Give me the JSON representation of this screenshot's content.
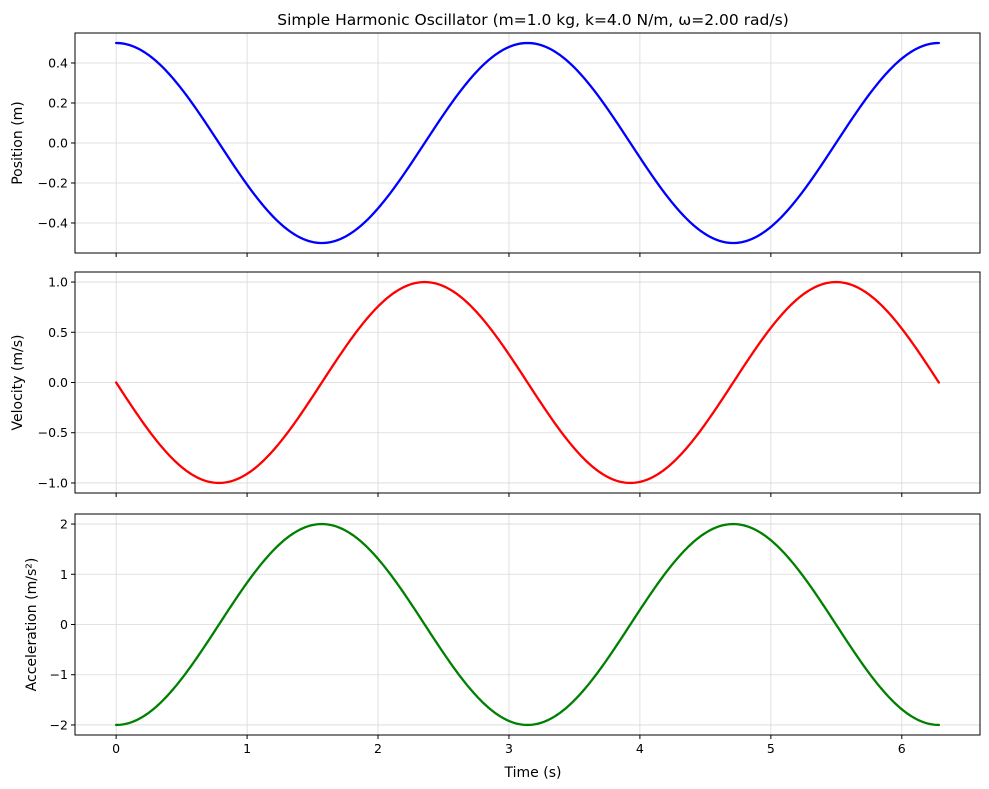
{
  "chart_data": {
    "type": "line",
    "title": "Simple Harmonic Oscillator (m=1.0 kg, k=4.0 N/m, ω=2.00 rad/s)",
    "xlabel": "Time (s)",
    "x_range": [
      0,
      6.2832
    ],
    "xlim": [
      -0.3142,
      6.5973
    ],
    "x_ticks": [
      0,
      1,
      2,
      3,
      4,
      5,
      6
    ],
    "x_tick_labels": [
      "0",
      "1",
      "2",
      "3",
      "4",
      "5",
      "6"
    ],
    "grid": true,
    "panels": [
      {
        "ylabel": "Position (m)",
        "ylim": [
          -0.55,
          0.55
        ],
        "y_ticks": [
          -0.4,
          -0.2,
          0.0,
          0.2,
          0.4
        ],
        "y_tick_labels": [
          "−0.4",
          "−0.2",
          "0.0",
          "0.2",
          "0.4"
        ],
        "color": "#0000ff",
        "series": {
          "x": [
            0,
            0.3927,
            0.7854,
            1.1781,
            1.5708,
            1.9635,
            2.3562,
            2.7489,
            3.1416,
            3.5343,
            3.927,
            4.3197,
            4.7124,
            5.1051,
            5.4978,
            5.8905,
            6.2832
          ],
          "y": [
            0.5,
            0.3536,
            0.0,
            -0.3536,
            -0.5,
            -0.3536,
            0.0,
            0.3536,
            0.5,
            0.3536,
            0.0,
            -0.3536,
            -0.5,
            -0.3536,
            0.0,
            0.3536,
            0.5
          ]
        }
      },
      {
        "ylabel": "Velocity (m/s)",
        "ylim": [
          -1.1,
          1.1
        ],
        "y_ticks": [
          -1.0,
          -0.5,
          0.0,
          0.5,
          1.0
        ],
        "y_tick_labels": [
          "−1.0",
          "−0.5",
          "0.0",
          "0.5",
          "1.0"
        ],
        "color": "#ff0000",
        "series": {
          "x": [
            0,
            0.3927,
            0.7854,
            1.1781,
            1.5708,
            1.9635,
            2.3562,
            2.7489,
            3.1416,
            3.5343,
            3.927,
            4.3197,
            4.7124,
            5.1051,
            5.4978,
            5.8905,
            6.2832
          ],
          "y": [
            0.0,
            -0.7071,
            -1.0,
            -0.7071,
            0.0,
            0.7071,
            1.0,
            0.7071,
            0.0,
            -0.7071,
            -1.0,
            -0.7071,
            0.0,
            0.7071,
            1.0,
            0.7071,
            0.0
          ]
        }
      },
      {
        "ylabel": "Acceleration (m/s²)",
        "ylim": [
          -2.2,
          2.2
        ],
        "y_ticks": [
          -2,
          -1,
          0,
          1,
          2
        ],
        "y_tick_labels": [
          "−2",
          "−1",
          "0",
          "1",
          "2"
        ],
        "color": "#008000",
        "series": {
          "x": [
            0,
            0.3927,
            0.7854,
            1.1781,
            1.5708,
            1.9635,
            2.3562,
            2.7489,
            3.1416,
            3.5343,
            3.927,
            4.3197,
            4.7124,
            5.1051,
            5.4978,
            5.8905,
            6.2832
          ],
          "y": [
            -2.0,
            -1.4142,
            0.0,
            1.4142,
            2.0,
            1.4142,
            0.0,
            -1.4142,
            -2.0,
            -1.4142,
            0.0,
            1.4142,
            2.0,
            1.4142,
            0.0,
            -1.4142,
            -2.0
          ]
        }
      }
    ]
  }
}
